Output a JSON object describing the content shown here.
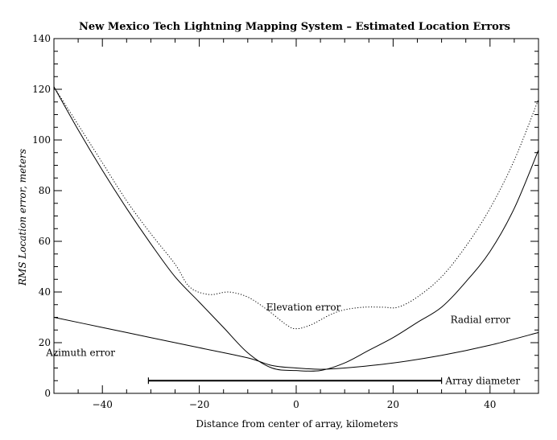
{
  "chart_data": {
    "type": "line",
    "title": "New Mexico Tech Lightning Mapping System – Estimated Location Errors",
    "xlabel": "Distance from center of array, kilometers",
    "ylabel": "RMS Location error, meters",
    "xlim": [
      -50,
      50
    ],
    "ylim": [
      0,
      140
    ],
    "xticks": [
      -40,
      -20,
      0,
      20,
      40
    ],
    "yticks": [
      0,
      20,
      40,
      60,
      80,
      100,
      120,
      140
    ],
    "grid": false,
    "series": [
      {
        "name": "Radial error",
        "style": "solid",
        "x": [
          -50,
          -45,
          -40,
          -35,
          -30,
          -25,
          -20,
          -15,
          -10,
          -5,
          0,
          5,
          10,
          15,
          20,
          25,
          30,
          35,
          40,
          45,
          50
        ],
        "y": [
          121,
          104,
          88,
          73,
          59,
          46,
          36,
          26,
          16,
          10,
          9,
          9,
          12,
          17,
          22,
          28,
          34,
          44,
          56,
          73,
          96
        ]
      },
      {
        "name": "Elevation error",
        "style": "dotted",
        "x": [
          -50,
          -45,
          -40,
          -35,
          -30,
          -25,
          -22,
          -18,
          -14,
          -10,
          -6,
          -2,
          0,
          3,
          7,
          10,
          14,
          18,
          21,
          25,
          30,
          35,
          40,
          45,
          50
        ],
        "y": [
          121,
          106,
          91,
          76,
          63,
          51,
          42,
          39,
          40,
          38,
          33,
          27,
          25.5,
          27,
          31,
          33,
          34,
          34,
          34,
          38,
          46,
          58,
          73,
          92,
          116
        ]
      },
      {
        "name": "Azimuth error",
        "style": "solid",
        "x": [
          -50,
          -40,
          -30,
          -20,
          -10,
          -5,
          0,
          5,
          10,
          20,
          30,
          40,
          50
        ],
        "y": [
          30,
          26,
          22,
          18,
          14,
          11,
          10,
          9.5,
          10,
          12,
          15,
          19,
          24
        ]
      }
    ],
    "annotations": [
      {
        "text": "Elevation error",
        "x": 1.5,
        "y": 34
      },
      {
        "text": "Radial error",
        "x": 38,
        "y": 29
      },
      {
        "text": "Azimuth error",
        "x": -44.5,
        "y": 16
      },
      {
        "text": "Array diameter",
        "x": 38.5,
        "y": 5
      }
    ],
    "array_diameter": {
      "x_start": -30.5,
      "x_end": 30,
      "y": 5
    }
  }
}
